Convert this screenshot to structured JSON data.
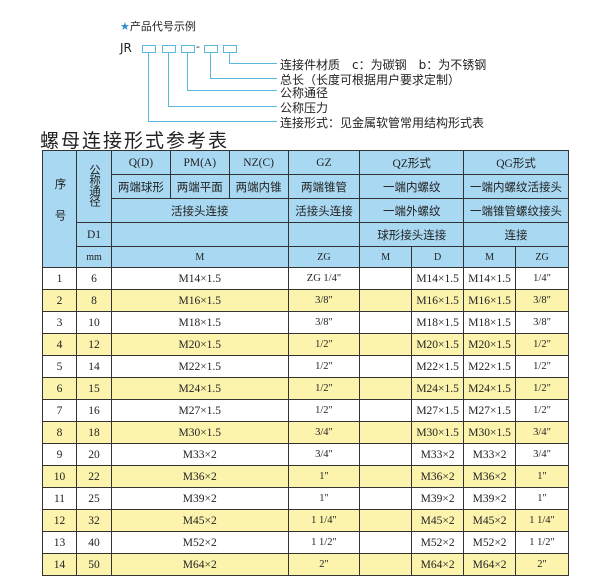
{
  "code_example": {
    "heading": "产品代号示例",
    "prefix": "JR",
    "separator": "-",
    "legend": [
      "连接件材质　c：为碳钢　b：为不锈钢",
      "总长（长度可根据用户要求定制）",
      "公称通径",
      "公称压力",
      "连接形式：见金属软管常用结构形式表"
    ]
  },
  "title": "螺母连接形式参考表",
  "header": {
    "seq": "序号",
    "dn": "公称通径",
    "d1": "D1",
    "mm": "mm",
    "q": "Q(D)",
    "pm": "PM(A)",
    "nz": "NZ(C)",
    "gz": "GZ",
    "qz": "QZ形式",
    "qg": "QG形式",
    "q_desc": "两端球形",
    "pm_desc": "两端平面",
    "nz_desc": "两端内锥",
    "gz_desc": "两端锥管",
    "qz_desc": "一端内螺纹",
    "qg_desc": "一端内螺纹活接头",
    "live_joint": "活接头连接",
    "gz_joint": "活接头连接",
    "qz_desc2": "一端外螺纹",
    "qg_desc2": "一端锥管螺纹接头",
    "qz_desc3": "球形接头连接",
    "qg_desc3": "连接",
    "col_m": "M",
    "col_zg": "ZG",
    "qz_m": "M",
    "qz_d": "D",
    "qg_m": "M",
    "qg_zg": "ZG"
  },
  "rows": [
    [
      "1",
      "6",
      "M14×1.5",
      "ZG 1/4\"",
      "",
      "M14×1.5",
      "M14×1.5",
      "1/4\""
    ],
    [
      "2",
      "8",
      "M16×1.5",
      "3/8\"",
      "",
      "M16×1.5",
      "M16×1.5",
      "3/8\""
    ],
    [
      "3",
      "10",
      "M18×1.5",
      "3/8\"",
      "",
      "M18×1.5",
      "M18×1.5",
      "3/8\""
    ],
    [
      "4",
      "12",
      "M20×1.5",
      "1/2\"",
      "",
      "M20×1.5",
      "M20×1.5",
      "1/2\""
    ],
    [
      "5",
      "14",
      "M22×1.5",
      "1/2\"",
      "",
      "M22×1.5",
      "M22×1.5",
      "1/2\""
    ],
    [
      "6",
      "15",
      "M24×1.5",
      "1/2\"",
      "",
      "M24×1.5",
      "M24×1.5",
      "1/2\""
    ],
    [
      "7",
      "16",
      "M27×1.5",
      "1/2\"",
      "",
      "M27×1.5",
      "M27×1.5",
      "1/2\""
    ],
    [
      "8",
      "18",
      "M30×1.5",
      "3/4\"",
      "",
      "M30×1.5",
      "M30×1.5",
      "3/4\""
    ],
    [
      "9",
      "20",
      "M33×2",
      "3/4\"",
      "",
      "M33×2",
      "M33×2",
      "3/4\""
    ],
    [
      "10",
      "22",
      "M36×2",
      "1\"",
      "",
      "M36×2",
      "M36×2",
      "1\""
    ],
    [
      "11",
      "25",
      "M39×2",
      "1\"",
      "",
      "M39×2",
      "M39×2",
      "1\""
    ],
    [
      "12",
      "32",
      "M45×2",
      "1 1/4\"",
      "",
      "M45×2",
      "M45×2",
      "1 1/4\""
    ],
    [
      "13",
      "40",
      "M52×2",
      "1 1/2\"",
      "",
      "M52×2",
      "M52×2",
      "1 1/2\""
    ],
    [
      "14",
      "50",
      "M64×2",
      "2\"",
      "",
      "M64×2",
      "M64×2",
      "2\""
    ]
  ]
}
